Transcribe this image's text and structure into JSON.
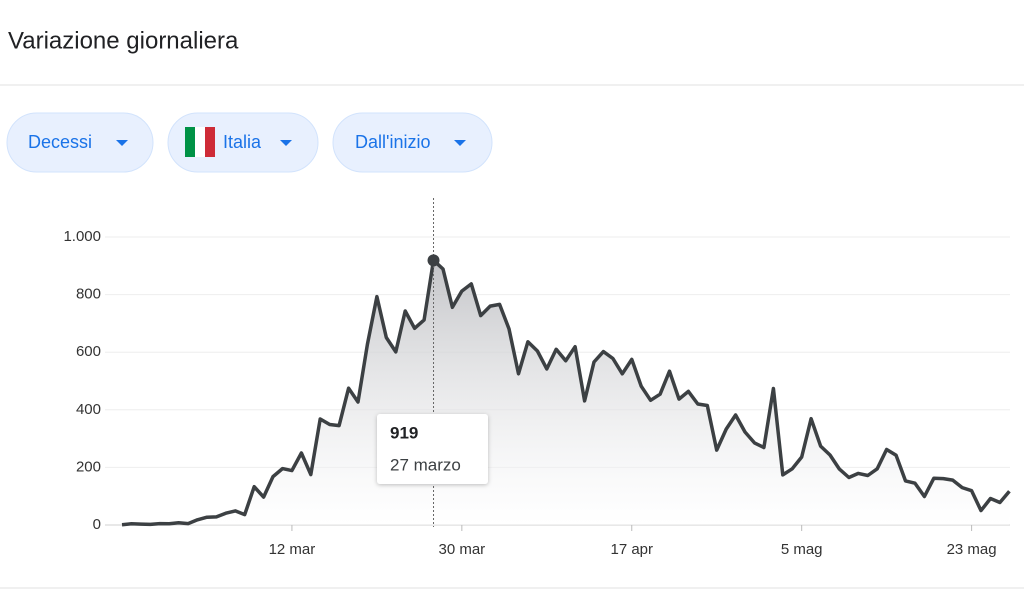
{
  "header": {
    "title": "Variazione giornaliera"
  },
  "filters": [
    "Decessi",
    "Italia",
    "Dall'inizio"
  ],
  "chart_data": {
    "type": "line",
    "categories": [
      null,
      null,
      null,
      null,
      null,
      null,
      null,
      null,
      null,
      null,
      null,
      null,
      null,
      null,
      null,
      null,
      null,
      null,
      "12 mar",
      null,
      null,
      null,
      null,
      null,
      null,
      null,
      null,
      null,
      null,
      null,
      null,
      null,
      null,
      null,
      null,
      null,
      "30 mar",
      null,
      null,
      null,
      null,
      null,
      null,
      null,
      null,
      null,
      null,
      null,
      null,
      null,
      null,
      null,
      null,
      null,
      "17 apr",
      null,
      null,
      null,
      null,
      null,
      null,
      null,
      null,
      null,
      null,
      null,
      null,
      null,
      null,
      null,
      null,
      null,
      "5 mag",
      null,
      null,
      null,
      null,
      null,
      null,
      null,
      null,
      null,
      null,
      null,
      null,
      null,
      null,
      null,
      null,
      null,
      "23 mag",
      null,
      null,
      null,
      null
    ],
    "values": [
      1,
      4,
      3,
      2,
      5,
      4,
      8,
      5,
      18,
      27,
      28,
      41,
      49,
      36,
      133,
      97,
      168,
      196,
      189,
      250,
      175,
      368,
      349,
      345,
      475,
      427,
      627,
      793,
      651,
      601,
      743,
      683,
      712,
      919,
      889,
      756,
      812,
      837,
      727,
      760,
      766,
      681,
      525,
      636,
      604,
      542,
      610,
      570,
      619,
      431,
      566,
      602,
      578,
      525,
      575,
      482,
      433,
      454,
      534,
      437,
      464,
      420,
      415,
      260,
      333,
      382,
      323,
      285,
      269,
      474,
      174,
      195,
      236,
      369,
      274,
      243,
      194,
      165,
      179,
      172,
      195,
      262,
      242,
      153,
      145,
      99,
      162,
      161,
      156,
      130,
      119,
      50,
      92,
      78,
      117
    ],
    "color": "#3c4043",
    "ylim": [
      0,
      1000
    ],
    "yticks": [
      0,
      200,
      400,
      600,
      800,
      {
        "value": 1000,
        "label": "1.000"
      }
    ],
    "grid": true,
    "tooltip_date": "27 marzo"
  }
}
